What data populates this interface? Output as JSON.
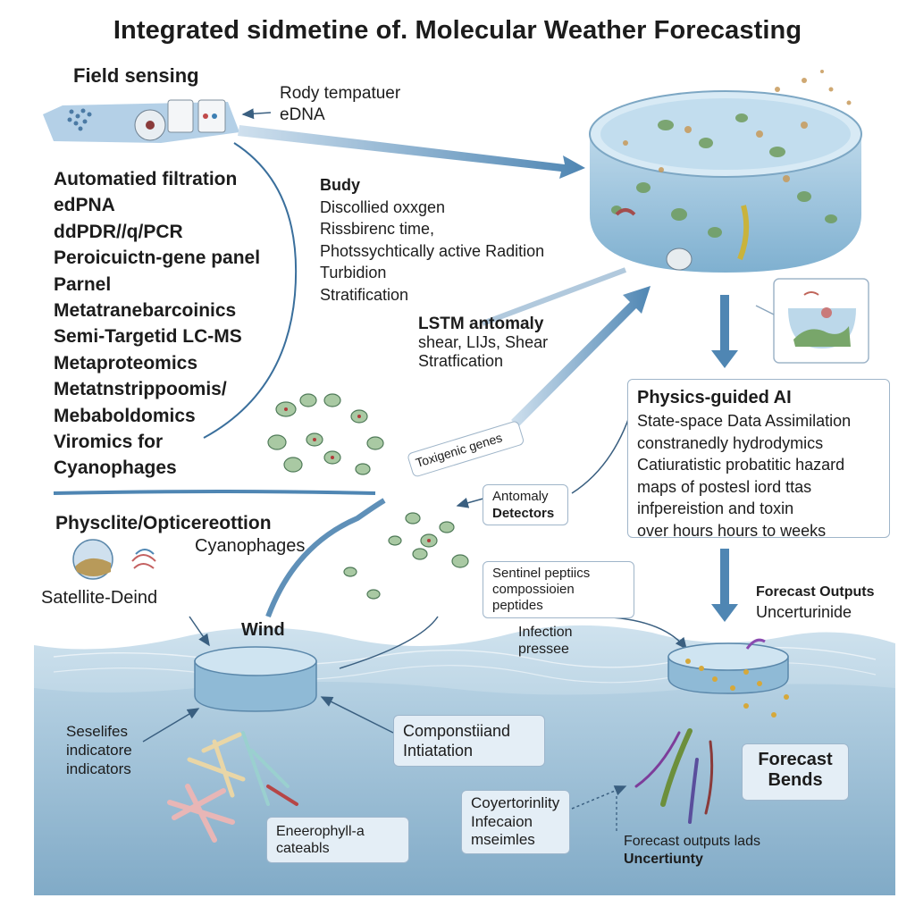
{
  "title": "Integrated sidmetine of. Molecular Weather Forecasting",
  "field_sensing": {
    "heading": "Field sensing",
    "note_line1": "Rody tempatuer",
    "note_line2": "eDNA"
  },
  "left_list": [
    "Automatied filtration",
    "edPNA",
    "ddPDR//q/PCR",
    "Peroicuictn-gene panel",
    "Parnel",
    "Metatranebarcoinics",
    "Semi-Targetid LC-MS",
    "Metaproteomics",
    "Metatnstrippoomis/",
    "Mebaboldomics",
    "Viromics for",
    "Cyanophages"
  ],
  "params": {
    "heading": "Budy",
    "items": [
      "Discollied oxxgen",
      "Rissbirenc time,",
      "Photssychtically active Radition",
      "Turbidion",
      "Stratification"
    ]
  },
  "lstm": {
    "heading": "LSTM antomaly",
    "line1": "shear, LIJs, Shear",
    "line2": "Stratfication"
  },
  "physics": {
    "heading": "Physics-guided AI",
    "lines": [
      "State-space Data Assimilation",
      "constranedly hydrodymics",
      "Catiuratistic probatitic hazard",
      "maps of postesl iord ttas",
      "infpereistion and toxin",
      "over hours hours to weeks"
    ]
  },
  "toxigenic": "Toxigenic genes",
  "anomaly": {
    "line1": "Antomaly",
    "line2": "Detectors"
  },
  "physclite": "Physclite/Opticereottion",
  "cyanophages_label": "Cyanophages",
  "satellite": "Satellite-Deind",
  "wind": "Wind",
  "sentinel": {
    "line1": "Sentinel peptiics",
    "line2": "compossioien",
    "line3": "peptides"
  },
  "infection": {
    "line1": "Infection",
    "line2": "pressee"
  },
  "forecast_outputs": {
    "heading": "Forecast Outputs",
    "sub": "Uncerturinide"
  },
  "seselifes": {
    "line1": "Seselifes",
    "line2": "indicatore",
    "line3": "indicators"
  },
  "componstii": {
    "line1": "Componstiiand",
    "line2": "Intiatation"
  },
  "forecast_bends": {
    "line1": "Forecast",
    "line2": "Bends"
  },
  "coyertorinlity": {
    "line1": "Coyertorinlity",
    "line2": "Infecaion",
    "line3": "mseimles"
  },
  "eneerophyll": {
    "line1": "Eneerophyll-a",
    "line2": "cateabls"
  },
  "forecast_bottom": {
    "line1": "Forecast outputs lads",
    "line2": "Uncertiunty"
  }
}
